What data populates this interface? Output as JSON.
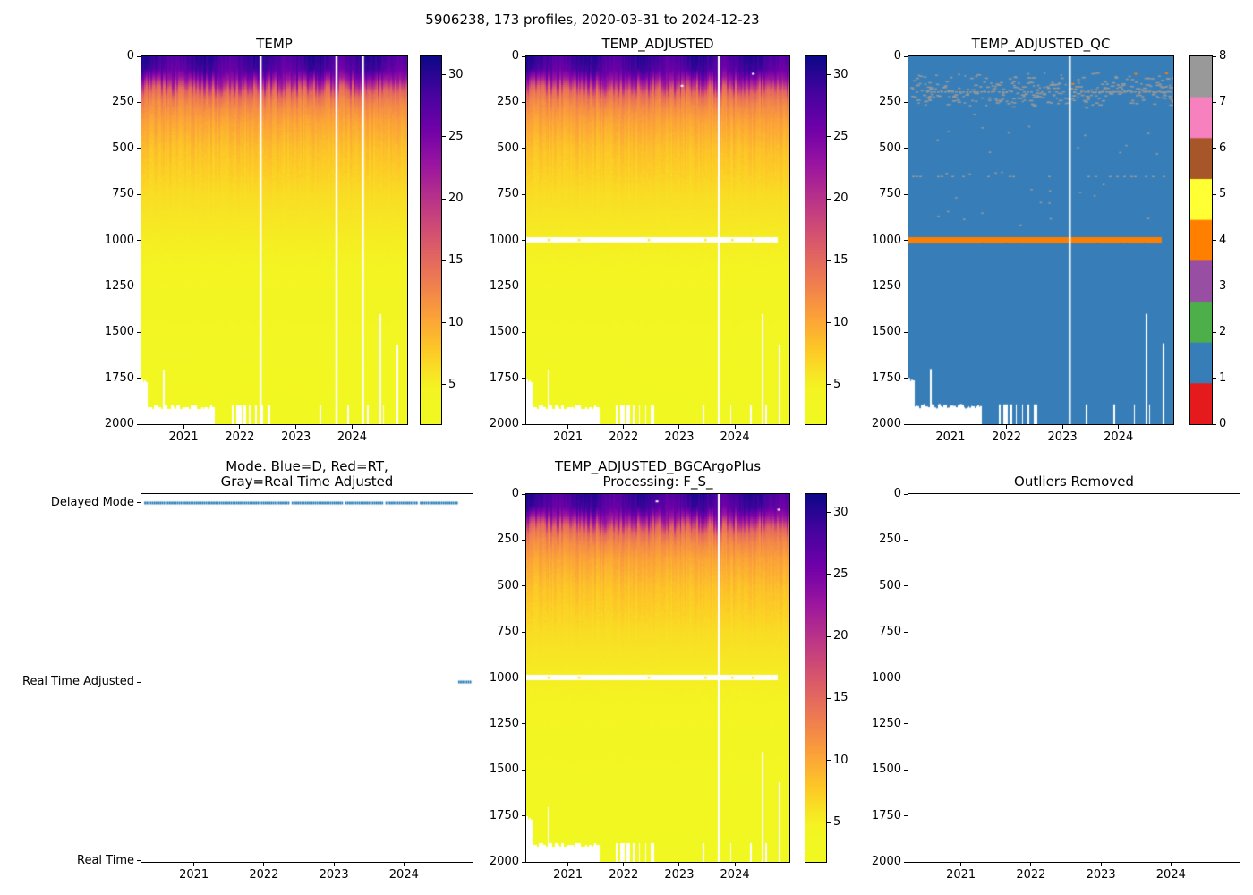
{
  "figure": {
    "title": "5906238, 173 profiles, 2020-03-31 to 2024-12-23",
    "platform_id": "5906238",
    "n_profiles": 173,
    "date_start": "2020-03-31",
    "date_end": "2024-12-23"
  },
  "chart_data": {
    "type": "heatmap",
    "time_axis": {
      "range_years": [
        2020.25,
        2024.98
      ],
      "ticks": [
        2021,
        2022,
        2023,
        2024
      ]
    },
    "depth_axis": {
      "range_m": [
        0,
        2000
      ],
      "ticks": [
        0,
        250,
        500,
        750,
        1000,
        1250,
        1500,
        1750,
        2000
      ]
    },
    "temp_colorbar": {
      "colormap": "plasma_r",
      "vmin": 1.8,
      "vmax": 31.5,
      "ticks": [
        5,
        10,
        15,
        20,
        25,
        30
      ]
    },
    "qc_colorbar": {
      "ticks": [
        0,
        1,
        2,
        3,
        4,
        5,
        6,
        7,
        8
      ],
      "colors": [
        "#e41a1c",
        "#377eb8",
        "#4daf4a",
        "#984ea3",
        "#ff7f00",
        "#ffff33",
        "#a65628",
        "#f781bf",
        "#999999"
      ]
    },
    "profile_model": {
      "n_profiles": 173,
      "depth_anchors_m": [
        0,
        70,
        130,
        190,
        260,
        350,
        500,
        750,
        1000,
        1250,
        1500,
        1750,
        2000
      ],
      "temp_anchors_c": [
        29.0,
        27.6,
        22.5,
        15.2,
        12.4,
        10.4,
        8.4,
        6.4,
        5.2,
        4.4,
        3.7,
        3.1,
        2.6
      ],
      "surface_seasonal": {
        "mean_c": 28.8,
        "amplitude_c": 1.5,
        "peak_phase": 0.33
      },
      "thermocline_jitter_m": 80,
      "bottom_coverage": [
        {
          "t_start": 2020.25,
          "t_end": 2020.36,
          "max_depth": 1720
        },
        {
          "t_start": 2020.36,
          "t_end": 2021.56,
          "max_depth": 1890
        },
        {
          "t_start": 2021.56,
          "t_end": 2024.98,
          "max_depth": 2000
        }
      ],
      "notch_1700_time": 2020.64,
      "shallow_notch_times": [
        2021.88,
        2021.95,
        2022.0,
        2022.08,
        2022.18,
        2022.28,
        2022.4,
        2022.52,
        2023.44,
        2023.92,
        2024.29,
        2024.56
      ],
      "tall_notches": [
        {
          "t": 2024.5,
          "d_from": 1400
        },
        {
          "t": 2024.8,
          "d_from": 1560
        }
      ]
    },
    "plots": [
      {
        "id": "temp",
        "type": "heatmap",
        "title": "TEMP",
        "missing_profile_times": [
          2022.37,
          2023.72,
          2024.19
        ]
      },
      {
        "id": "temp_adjusted",
        "type": "heatmap",
        "title": "TEMP_ADJUSTED",
        "missing_profile_times": [
          2023.71
        ],
        "masked_band": {
          "depth_range": [
            983,
            1012
          ],
          "t_end": 2024.77,
          "gap_dot_times": [
            2020.65,
            2021.2,
            2022.45,
            2023.47,
            2023.95,
            2024.32
          ]
        },
        "white_specks": [
          [
            2023.05,
            160
          ],
          [
            2024.33,
            95
          ]
        ]
      },
      {
        "id": "temp_adjusted_qc",
        "type": "qc-heatmap",
        "title": "TEMP_ADJUSTED_QC",
        "background_qc": 1,
        "missing_profile_times": [
          2023.13
        ],
        "qc4_band": {
          "depth_range": [
            983,
            1016
          ],
          "t_end": 2024.77
        },
        "qc8_speckle_band": {
          "depth_range": [
            85,
            285
          ],
          "peak_depth": 185
        },
        "qc8_dashed_line_depths": [
          190,
          650
        ],
        "qc4_dots": [
          [
            2023.18,
            150
          ],
          [
            2024.3,
            95
          ],
          [
            2024.85,
            92
          ]
        ]
      },
      {
        "id": "mode",
        "type": "categorical-timeline",
        "title": "Mode. Blue=D, Red=RT,\nGray=Real Time Adjusted",
        "y_categories": [
          "Delayed Mode",
          "Real Time Adjusted",
          "Real Time"
        ],
        "line_color": "#1f77b4",
        "segments": [
          {
            "category": "Delayed Mode",
            "t_start": 2020.28,
            "t_end": 2024.77
          },
          {
            "category": "Real Time Adjusted",
            "t_start": 2024.75,
            "t_end": 2024.95
          }
        ],
        "gap_times": [
          2022.37,
          2023.13,
          2023.72,
          2024.19
        ]
      },
      {
        "id": "bgc",
        "type": "heatmap",
        "title": "TEMP_ADJUSTED_BGCArgoPlus\nProcessing: F_S_",
        "missing_profile_times": [
          2023.71
        ],
        "masked_band": {
          "depth_range": [
            983,
            1012
          ],
          "t_end": 2024.77,
          "gap_dot_times": [
            2020.65,
            2021.2,
            2022.45,
            2023.47,
            2023.95,
            2024.32
          ]
        },
        "white_specks": [
          [
            2022.6,
            40
          ],
          [
            2024.79,
            85
          ]
        ]
      },
      {
        "id": "outliers",
        "type": "empty",
        "title": "Outliers Removed",
        "points": []
      }
    ]
  }
}
